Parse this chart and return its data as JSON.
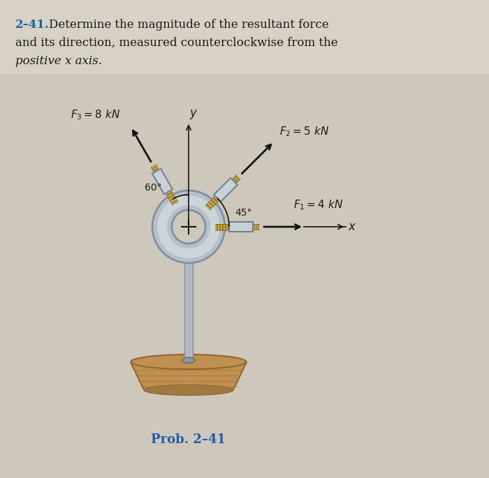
{
  "bg_color": "#cec8bc",
  "text_color": "#1a1a1a",
  "blue_color": "#1a5fa8",
  "title_line1": "Determine the magnitude of the resultant force",
  "title_line2": "and its direction, measured counterclockwise from the",
  "title_line3": "positive x axis.",
  "title_num": "2–41.",
  "prob_label": "Prob. 2–41",
  "F1_label": "$F_1 = 4$ kN",
  "F2_label": "$F_2 = 5$ kN",
  "F3_label": "$F_3 = 8$ kN",
  "angle1_label": "60°",
  "angle2_label": "45°",
  "x_label": "x",
  "y_label": "y",
  "arrow_color": "#111111",
  "rope_color": "#c8a848",
  "rope_color2": "#9a7828",
  "ring_color": "#b8bfc8",
  "ring_shadow": "#8090a0",
  "stand_color": "#b0b8c4",
  "wood_top": "#c09050",
  "wood_bot": "#a07840",
  "wood_grain": "#906830"
}
